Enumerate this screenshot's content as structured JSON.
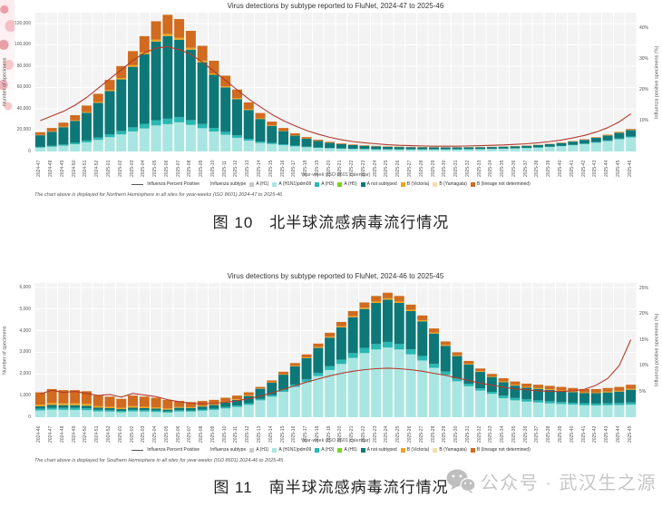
{
  "page": {
    "watermark": {
      "icon": "wechat-icon",
      "text": "公众号 · 武汉生之源"
    }
  },
  "figures": [
    {
      "caption": "图 10　北半球流感病毒流行情况"
    },
    {
      "caption": "图 11　南半球流感病毒流行情况"
    }
  ],
  "chart_data": [
    {
      "type": "bar",
      "stacked": true,
      "grid": true,
      "legend_position": "bottom",
      "title": "Virus detections by subtype reported to FluNet, 2024-47 to 2025-46",
      "xlabel": "Year-week (ISO 8601 calendar)",
      "ylabel_left": "Number of specimens",
      "ylabel_right": "Influenza positive specimens (%)",
      "footnote": "The chart above is displayed for Northern Hemisphere in all sites for year-weeks (ISO 8601) 2024-47 to 2025-46",
      "categories": [
        "2024-47",
        "2024-48",
        "2024-49",
        "2024-50",
        "2024-51",
        "2024-52",
        "2025-01",
        "2025-02",
        "2025-03",
        "2025-04",
        "2025-05",
        "2025-06",
        "2025-07",
        "2025-08",
        "2025-09",
        "2025-10",
        "2025-11",
        "2025-12",
        "2025-13",
        "2025-14",
        "2025-15",
        "2025-16",
        "2025-17",
        "2025-18",
        "2025-19",
        "2025-20",
        "2025-21",
        "2025-22",
        "2025-23",
        "2025-24",
        "2025-25",
        "2025-26",
        "2025-27",
        "2025-28",
        "2025-29",
        "2025-30",
        "2025-31",
        "2025-32",
        "2025-33",
        "2025-34",
        "2025-35",
        "2025-36",
        "2025-37",
        "2025-38",
        "2025-39",
        "2025-40",
        "2025-41",
        "2025-42",
        "2025-43",
        "2025-44",
        "2025-45",
        "2025-46"
      ],
      "y_left": {
        "max": 130000,
        "ticks": [
          0,
          20000,
          40000,
          60000,
          80000,
          100000,
          120000
        ]
      },
      "y_right": {
        "max": 45,
        "ticks": [
          10,
          20,
          30,
          40
        ],
        "suffix": "%"
      },
      "series": [
        {
          "name": "A (H1N1)pdm09",
          "color": "#a9e6e2",
          "values": [
            3600,
            4400,
            5400,
            6800,
            8600,
            10800,
            13400,
            16000,
            18800,
            21600,
            24400,
            25600,
            27300,
            24900,
            21800,
            18700,
            15600,
            12800,
            10100,
            7900,
            7000,
            5900,
            4800,
            4000,
            3400,
            2900,
            2600,
            2300,
            2100,
            1900,
            1900,
            1800,
            1800,
            1800,
            1800,
            1800,
            1900,
            2000,
            2100,
            2300,
            2500,
            2800,
            3100,
            3600,
            4200,
            4900,
            5800,
            6900,
            8200,
            9700,
            11400,
            13200
          ]
        },
        {
          "name": "A (H3)",
          "color": "#29b8b2",
          "values": [
            700,
            900,
            1100,
            1400,
            1700,
            2200,
            2700,
            3200,
            3800,
            4300,
            4900,
            5100,
            5000,
            4500,
            4000,
            3400,
            2800,
            2300,
            1800,
            1400,
            1100,
            900,
            700,
            540,
            440,
            360,
            300,
            260,
            230,
            210,
            190,
            180,
            170,
            170,
            160,
            160,
            160,
            160,
            170,
            180,
            190,
            200,
            220,
            250,
            290,
            330,
            390,
            460,
            540,
            630,
            730,
            840
          ]
        },
        {
          "name": "A not subtyped",
          "color": "#0e7878",
          "values": [
            10900,
            13250,
            16250,
            20450,
            26000,
            32500,
            40400,
            48300,
            56700,
            65300,
            73700,
            77400,
            72400,
            66000,
            57800,
            49700,
            41600,
            33900,
            27000,
            21150,
            15880,
            12270,
            9340,
            7360,
            5990,
            4800,
            3990,
            3440,
            2980,
            2660,
            2340,
            2200,
            2050,
            1970,
            1900,
            1820,
            1730,
            1740,
            1730,
            1700,
            1790,
            1860,
            2030,
            2170,
            2380,
            2700,
            3070,
            3530,
            4060,
            4660,
            5350,
            6010
          ]
        },
        {
          "name": "B (Victoria)",
          "color": "#efa51e",
          "values": [
            300,
            350,
            450,
            550,
            700,
            900,
            1100,
            1300,
            1500,
            1700,
            1900,
            2000,
            1900,
            1800,
            1500,
            1300,
            1100,
            900,
            700,
            550,
            420,
            330,
            260,
            200,
            170,
            140,
            110,
            100,
            90,
            80,
            70,
            70,
            60,
            60,
            60,
            60,
            60,
            60,
            60,
            70,
            70,
            80,
            80,
            90,
            110,
            120,
            150,
            170,
            200,
            240,
            270,
            320
          ]
        },
        {
          "name": "B (lineage not determined)",
          "color": "#d06b1f",
          "values": [
            2500,
            3100,
            3800,
            4800,
            6000,
            7600,
            9400,
            11200,
            13200,
            15100,
            17100,
            17900,
            17400,
            15800,
            13900,
            11900,
            9900,
            8100,
            6400,
            5000,
            3600,
            2600,
            1900,
            1400,
            1000,
            800,
            600,
            500,
            400,
            350,
            300,
            250,
            220,
            200,
            180,
            160,
            150,
            140,
            140,
            150,
            150,
            160,
            170,
            190,
            220,
            250,
            290,
            340,
            400,
            470,
            550,
            630
          ]
        }
      ],
      "line": {
        "name": "Influenza Percent Positive",
        "color": "#b13a2c",
        "values": [
          10,
          11.5,
          13,
          15,
          17.5,
          20.5,
          23.5,
          26.5,
          29.5,
          32,
          33.5,
          34,
          33,
          31.5,
          29,
          26,
          23,
          20,
          17,
          14.5,
          12,
          10,
          8.3,
          6.8,
          5.6,
          4.6,
          3.8,
          3.2,
          2.8,
          2.5,
          2.2,
          2.0,
          1.9,
          1.8,
          1.7,
          1.7,
          1.7,
          1.8,
          1.9,
          2.0,
          2.1,
          2.3,
          2.5,
          2.8,
          3.2,
          3.7,
          4.4,
          5.2,
          6.3,
          7.7,
          9.6,
          12.2
        ]
      },
      "legend": {
        "line_label": "Influenza Percent Positive",
        "subtype_label": "Influenza subtype",
        "items": [
          {
            "label": "A (H1)",
            "color": "#c9c9c9"
          },
          {
            "label": "A (H1N1)pdm09",
            "color": "#a9e6e2"
          },
          {
            "label": "A (H3)",
            "color": "#29b8b2"
          },
          {
            "label": "A (H5)",
            "color": "#7bd41f"
          },
          {
            "label": "A not subtyped",
            "color": "#0e7878"
          },
          {
            "label": "B (Victoria)",
            "color": "#efa51e"
          },
          {
            "label": "B (Yamagata)",
            "color": "#f7dcab"
          },
          {
            "label": "B (lineage not determined)",
            "color": "#d06b1f"
          }
        ]
      }
    },
    {
      "type": "bar",
      "stacked": true,
      "grid": true,
      "legend_position": "bottom",
      "title": "Virus detections by subtype reported to FluNet, 2024-46 to 2025-45",
      "xlabel": "Year-week (ISO 8601 calendar)",
      "ylabel_left": "Number of specimens",
      "ylabel_right": "Influenza positive specimens (%)",
      "footnote": "The chart above is displayed for Southern Hemisphere in all sites for year-weeks (ISO 8601) 2024-46 to 2025-45",
      "categories": [
        "2024-46",
        "2024-47",
        "2024-48",
        "2024-49",
        "2024-50",
        "2024-51",
        "2024-52",
        "2025-01",
        "2025-02",
        "2025-03",
        "2025-04",
        "2025-05",
        "2025-06",
        "2025-07",
        "2025-08",
        "2025-09",
        "2025-10",
        "2025-11",
        "2025-12",
        "2025-13",
        "2025-14",
        "2025-15",
        "2025-16",
        "2025-17",
        "2025-18",
        "2025-19",
        "2025-20",
        "2025-21",
        "2025-22",
        "2025-23",
        "2025-24",
        "2025-25",
        "2025-26",
        "2025-27",
        "2025-28",
        "2025-29",
        "2025-30",
        "2025-31",
        "2025-32",
        "2025-33",
        "2025-34",
        "2025-35",
        "2025-36",
        "2025-37",
        "2025-38",
        "2025-39",
        "2025-40",
        "2025-41",
        "2025-42",
        "2025-43",
        "2025-44",
        "2025-45"
      ],
      "y_left": {
        "max": 6200,
        "ticks": [
          0,
          1000,
          2000,
          3000,
          4000,
          5000,
          6000
        ]
      },
      "y_right": {
        "max": 26,
        "ticks": [
          5,
          10,
          15,
          20,
          25
        ],
        "suffix": "%"
      },
      "series": [
        {
          "name": "A (H1N1)pdm09",
          "color": "#a9e6e2",
          "values": [
            310,
            350,
            340,
            340,
            325,
            270,
            260,
            230,
            270,
            260,
            245,
            215,
            265,
            260,
            300,
            340,
            405,
            470,
            570,
            780,
            950,
            1170,
            1400,
            1620,
            1900,
            2180,
            2460,
            2740,
            2960,
            3130,
            3220,
            3130,
            2900,
            2620,
            2280,
            1950,
            1660,
            1430,
            1230,
            1080,
            880,
            780,
            720,
            680,
            640,
            610,
            580,
            550,
            540,
            550,
            560,
            580
          ]
        },
        {
          "name": "A (H3)",
          "color": "#29b8b2",
          "values": [
            80,
            90,
            90,
            90,
            85,
            70,
            65,
            60,
            70,
            65,
            65,
            55,
            55,
            50,
            55,
            55,
            65,
            70,
            80,
            65,
            75,
            95,
            110,
            130,
            150,
            175,
            200,
            220,
            240,
            250,
            260,
            250,
            235,
            210,
            185,
            160,
            135,
            120,
            100,
            90,
            115,
            110,
            105,
            100,
            100,
            95,
            90,
            90,
            90,
            95,
            95,
            100
          ]
        },
        {
          "name": "A not subtyped",
          "color": "#0e7878",
          "values": [
            115,
            130,
            125,
            125,
            120,
            100,
            95,
            85,
            100,
            95,
            90,
            80,
            115,
            120,
            140,
            170,
            210,
            260,
            330,
            470,
            570,
            700,
            840,
            980,
            1150,
            1320,
            1490,
            1660,
            1800,
            1900,
            1950,
            1900,
            1770,
            1600,
            1400,
            1190,
            1030,
            890,
            770,
            690,
            620,
            570,
            540,
            530,
            520,
            500,
            490,
            470,
            480,
            500,
            530,
            590
          ]
        },
        {
          "name": "B (Victoria)",
          "color": "#efa51e",
          "values": [
            80,
            90,
            85,
            85,
            85,
            70,
            65,
            60,
            70,
            65,
            60,
            55,
            40,
            35,
            35,
            35,
            35,
            35,
            35,
            20,
            20,
            25,
            30,
            35,
            40,
            45,
            50,
            55,
            60,
            65,
            65,
            65,
            60,
            55,
            50,
            40,
            35,
            30,
            30,
            25,
            35,
            35,
            35,
            35,
            35,
            35,
            30,
            30,
            30,
            35,
            35,
            40
          ]
        },
        {
          "name": "B (lineage not determined)",
          "color": "#d06b1f",
          "values": [
            565,
            640,
            610,
            610,
            585,
            490,
            465,
            415,
            490,
            465,
            440,
            395,
            275,
            235,
            220,
            200,
            185,
            165,
            135,
            65,
            85,
            110,
            120,
            135,
            160,
            180,
            200,
            225,
            240,
            255,
            255,
            255,
            235,
            215,
            185,
            160,
            140,
            130,
            120,
            115,
            150,
            155,
            150,
            155,
            155,
            160,
            160,
            160,
            160,
            170,
            180,
            190
          ]
        }
      ],
      "line": {
        "name": "Influenza Percent Positive",
        "color": "#b13a2c",
        "values": [
          4.5,
          5.2,
          4.8,
          5.0,
          4.6,
          4.2,
          4.4,
          3.9,
          4.6,
          4.3,
          4.0,
          3.4,
          3.0,
          2.7,
          2.6,
          2.7,
          2.9,
          3.2,
          3.6,
          4.1,
          4.7,
          5.4,
          6.1,
          6.8,
          7.4,
          8.0,
          8.5,
          8.9,
          9.2,
          9.4,
          9.5,
          9.4,
          9.2,
          8.9,
          8.5,
          8.1,
          7.6,
          7.1,
          6.6,
          6.2,
          5.8,
          5.5,
          5.3,
          5.1,
          5.0,
          5.0,
          5.1,
          5.4,
          6.2,
          7.5,
          10.0,
          15.0
        ]
      },
      "legend": {
        "line_label": "Influenza Percent Positive",
        "subtype_label": "Influenza subtype",
        "items": [
          {
            "label": "A (H1)",
            "color": "#c9c9c9"
          },
          {
            "label": "A (H1N1)pdm09",
            "color": "#a9e6e2"
          },
          {
            "label": "A (H3)",
            "color": "#29b8b2"
          },
          {
            "label": "A (H5)",
            "color": "#7bd41f"
          },
          {
            "label": "A not subtyped",
            "color": "#0e7878"
          },
          {
            "label": "B (Victoria)",
            "color": "#efa51e"
          },
          {
            "label": "B (Yamagata)",
            "color": "#f7dcab"
          },
          {
            "label": "B (lineage not determined)",
            "color": "#d06b1f"
          }
        ]
      }
    }
  ]
}
